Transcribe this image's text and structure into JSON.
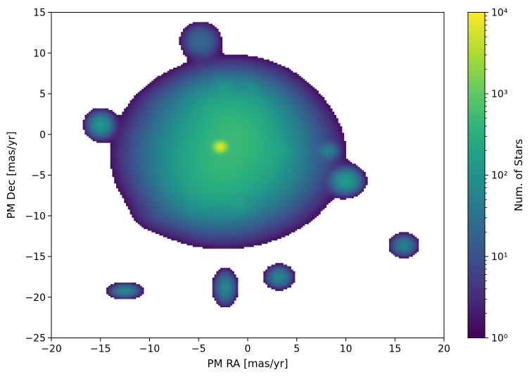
{
  "chart_data": {
    "type": "heatmap",
    "title": "",
    "xlabel": "PM RA [mas/yr]",
    "ylabel": "PM Dec [mas/yr]",
    "xlim": [
      -20,
      20
    ],
    "ylim": [
      -25,
      15
    ],
    "xticks": [
      -20,
      -15,
      -10,
      -5,
      0,
      5,
      10,
      15,
      20
    ],
    "xtick_labels": [
      "−20",
      "−15",
      "−10",
      "−5",
      "0",
      "5",
      "10",
      "15",
      "20"
    ],
    "yticks": [
      -25,
      -20,
      -15,
      -10,
      -5,
      0,
      5,
      10,
      15
    ],
    "ytick_labels": [
      "−25",
      "−20",
      "−15",
      "−10",
      "−5",
      "0",
      "5",
      "10",
      "15"
    ],
    "grid": false,
    "colormap": "viridis",
    "colorbar": {
      "label": "Num. of Stars",
      "scale": "log",
      "range": [
        1,
        10000
      ],
      "ticks": [
        1,
        10,
        100,
        1000,
        10000
      ],
      "tick_labels": [
        "10⁰",
        "10¹",
        "10²",
        "10³",
        "10⁴"
      ]
    },
    "clumps": [
      {
        "pmra": -2.8,
        "pmdec": -1.5,
        "peak_count": 6000,
        "sigma_ra": 0.35,
        "sigma_dec": 0.35
      },
      {
        "pmra": -2.0,
        "pmdec": -2.5,
        "peak_count": 400,
        "sigma_ra": 3.6,
        "sigma_dec": 3.4
      },
      {
        "pmra": -1.0,
        "pmdec": 1.5,
        "peak_count": 200,
        "sigma_ra": 2.5,
        "sigma_dec": 2.5
      },
      {
        "pmra": -3.5,
        "pmdec": -6.5,
        "peak_count": 120,
        "sigma_ra": 2.5,
        "sigma_dec": 2.2
      },
      {
        "pmra": -3.0,
        "pmdec": 3.5,
        "peak_count": 80,
        "sigma_ra": 2.2,
        "sigma_dec": 1.8
      },
      {
        "pmra": -7.5,
        "pmdec": 3.0,
        "peak_count": 6,
        "sigma_ra": 1.6,
        "sigma_dec": 1.6
      },
      {
        "pmra": 2.0,
        "pmdec": -3.0,
        "peak_count": 30,
        "sigma_ra": 1.5,
        "sigma_dec": 2.0
      },
      {
        "pmra": -4.8,
        "pmdec": 11.5,
        "peak_count": 25,
        "sigma_ra": 0.9,
        "sigma_dec": 1.0
      },
      {
        "pmra": -15.0,
        "pmdec": 1.2,
        "peak_count": 120,
        "sigma_ra": 0.6,
        "sigma_dec": 0.7
      },
      {
        "pmra": 10.0,
        "pmdec": -5.7,
        "peak_count": 150,
        "sigma_ra": 0.7,
        "sigma_dec": 0.7
      },
      {
        "pmra": 8.2,
        "pmdec": -2.0,
        "peak_count": 50,
        "sigma_ra": 0.5,
        "sigma_dec": 0.5
      },
      {
        "pmra": 15.9,
        "pmdec": -13.6,
        "peak_count": 50,
        "sigma_ra": 0.6,
        "sigma_dec": 0.6
      },
      {
        "pmra": 3.2,
        "pmdec": -17.5,
        "peak_count": 60,
        "sigma_ra": 0.6,
        "sigma_dec": 0.6
      },
      {
        "pmra": -2.3,
        "pmdec": -18.8,
        "peak_count": 60,
        "sigma_ra": 0.5,
        "sigma_dec": 0.9
      },
      {
        "pmra": -12.5,
        "pmdec": -19.2,
        "peak_count": 60,
        "sigma_ra": 0.7,
        "sigma_dec": 0.4
      },
      {
        "pmra": -2.5,
        "pmdec": 6.0,
        "peak_count": 40,
        "sigma_ra": 0.6,
        "sigma_dec": 0.6
      },
      {
        "pmra": 0.3,
        "pmdec": 5.8,
        "peak_count": 30,
        "sigma_ra": 0.5,
        "sigma_dec": 0.5
      },
      {
        "pmra": 1.5,
        "pmdec": 4.0,
        "peak_count": 25,
        "sigma_ra": 0.5,
        "sigma_dec": 0.5
      },
      {
        "pmra": -0.8,
        "pmdec": -9.0,
        "peak_count": 40,
        "sigma_ra": 0.7,
        "sigma_dec": 0.6
      },
      {
        "pmra": 3.5,
        "pmdec": -1.8,
        "peak_count": 40,
        "sigma_ra": 0.6,
        "sigma_dec": 0.6
      },
      {
        "pmra": -9.0,
        "pmdec": -10.0,
        "peak_count": 3,
        "sigma_ra": 1.5,
        "sigma_dec": 1.0
      }
    ]
  }
}
